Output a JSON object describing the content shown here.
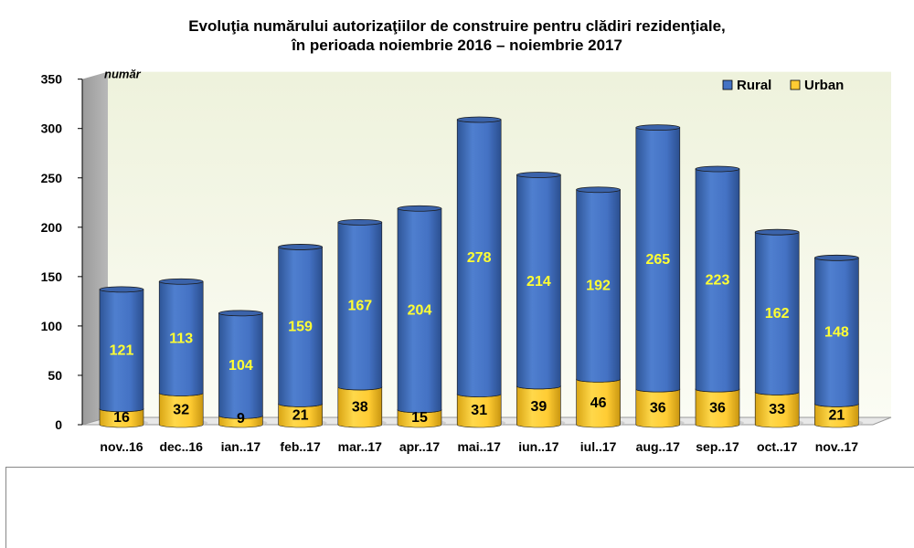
{
  "colors": {
    "rural": "#4472c4",
    "urban": "#ffcc33",
    "plot_bg": "#f2f6e4",
    "wall": "#a6a6a6",
    "rural_label": "#ffff33",
    "urban_label": "#000000"
  },
  "chart_data": {
    "type": "bar",
    "stacked": true,
    "title_line1": "Evoluţia numărului autorizaţiilor de construire pentru clădiri rezidenţiale,",
    "title_line2": "în perioada noiembrie 2016 – noiembrie 2017",
    "ylabel": "număr",
    "ylim": [
      0,
      350
    ],
    "yticks": [
      0,
      50,
      100,
      150,
      200,
      250,
      300,
      350
    ],
    "categories": [
      "nov..16",
      "dec..16",
      "ian..17",
      "feb..17",
      "mar..17",
      "apr..17",
      "mai..17",
      "iun..17",
      "iul..17",
      "aug..17",
      "sep..17",
      "oct..17",
      "nov..17"
    ],
    "series": [
      {
        "name": "Urban",
        "values": [
          16,
          32,
          9,
          21,
          38,
          15,
          31,
          39,
          46,
          36,
          36,
          33,
          21
        ]
      },
      {
        "name": "Rural",
        "values": [
          121,
          113,
          104,
          159,
          167,
          204,
          278,
          214,
          192,
          265,
          223,
          162,
          148
        ]
      }
    ],
    "legend_order": [
      "Rural",
      "Urban"
    ],
    "legend_position": "top-right",
    "grid": false
  }
}
